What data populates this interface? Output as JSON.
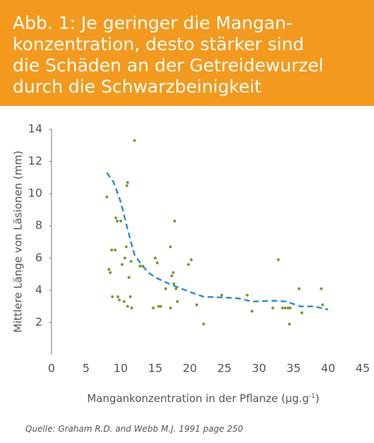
{
  "chart_data": {
    "type": "scatter",
    "title": [
      "Abb. 1: Je geringer die Mangan-",
      "konzentration, desto stärker sind",
      "die Schäden an der Getreidewurzel",
      "durch die Schwarzbeinigkeit"
    ],
    "y_label": "Mittlere Länge von Läsionen (mm)",
    "x_label": {
      "main": "Mangankonzentration in der Pflanze (µg.g",
      "sup": "-1",
      "end": ")"
    },
    "source": "Quelle: Graham R.D. and Webb M.J. 1991 page 250",
    "xlim": [
      0,
      45
    ],
    "xticks": [
      0,
      5,
      10,
      15,
      20,
      25,
      30,
      35,
      40,
      45
    ],
    "ylim": [
      0,
      14
    ],
    "yticks": [
      2,
      4,
      6,
      8,
      10,
      12,
      14
    ],
    "points": {
      "color": "#7a9a2a",
      "x": [
        8.0,
        8.3,
        8.5,
        8.7,
        8.8,
        9.2,
        9.3,
        9.5,
        9.6,
        9.8,
        10.0,
        10.2,
        10.5,
        10.6,
        10.8,
        10.9,
        11.0,
        11.0,
        11.2,
        11.4,
        11.5,
        11.6,
        12.0,
        12.8,
        13.2,
        14.7,
        15.0,
        15.3,
        15.5,
        15.8,
        16.5,
        17.2,
        17.2,
        17.4,
        17.6,
        17.7,
        17.8,
        18.0,
        18.2,
        19.8,
        20.2,
        21.0,
        22.0,
        24.6,
        28.3,
        29.0,
        32.0,
        32.8,
        33.4,
        33.8,
        34.2,
        34.5,
        34.4,
        35.8,
        36.2,
        39.0,
        39.2
      ],
      "y": [
        9.8,
        5.3,
        5.1,
        6.5,
        3.6,
        6.5,
        8.5,
        8.3,
        3.6,
        3.4,
        8.3,
        5.6,
        3.3,
        6.0,
        6.7,
        10.5,
        10.7,
        3.0,
        4.8,
        3.6,
        5.8,
        2.9,
        13.3,
        5.5,
        5.5,
        2.9,
        6.0,
        5.7,
        3.0,
        3.0,
        4.1,
        2.9,
        6.7,
        4.9,
        5.1,
        4.4,
        8.3,
        4.1,
        3.3,
        5.6,
        5.9,
        3.1,
        1.9,
        3.7,
        3.7,
        2.7,
        2.9,
        5.9,
        2.9,
        2.9,
        2.9,
        2.9,
        1.9,
        4.1,
        2.6,
        4.1,
        3.1
      ]
    },
    "trend": {
      "color": "#2e8fd6",
      "dashed": true,
      "x": [
        8,
        9,
        10,
        11,
        12,
        13,
        14,
        15,
        17,
        20,
        22,
        25,
        27,
        29,
        32,
        34,
        36,
        38,
        40
      ],
      "y": [
        11.3,
        10.7,
        9.5,
        7.8,
        6.2,
        5.6,
        5.1,
        4.8,
        4.4,
        3.9,
        3.6,
        3.55,
        3.5,
        3.3,
        3.35,
        3.3,
        3.0,
        3.0,
        2.8
      ]
    }
  }
}
